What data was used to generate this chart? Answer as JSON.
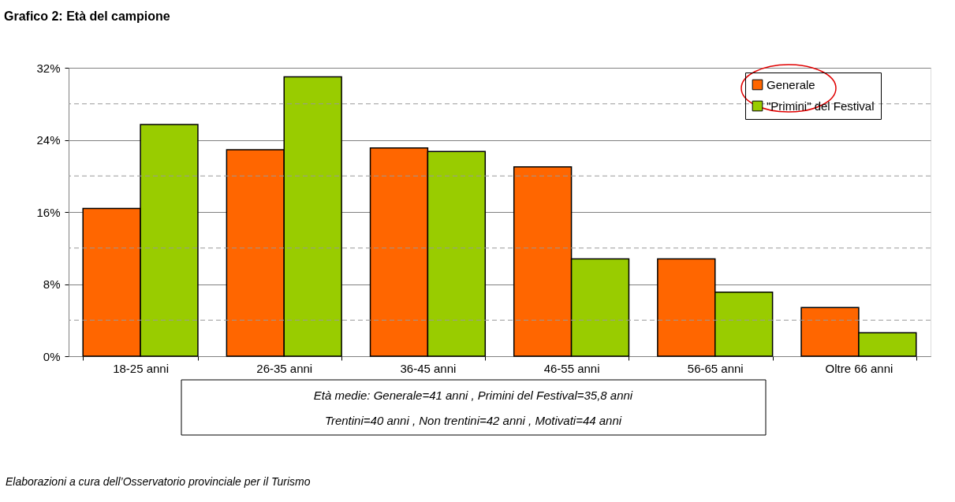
{
  "chart_data": {
    "type": "bar",
    "title": "Grafico 2: Età del campione",
    "categories": [
      "18-25 anni",
      "26-35 anni",
      "36-45 anni",
      "46-55 anni",
      "56-65 anni",
      "Oltre 66 anni"
    ],
    "series": [
      {
        "name": "Generale",
        "color": "#ff6600",
        "values": [
          16.4,
          22.9,
          23.1,
          21.0,
          10.8,
          5.4
        ]
      },
      {
        "name": "\"Primini\" del Festival",
        "color": "#99cc00",
        "values": [
          25.7,
          31.0,
          22.7,
          10.8,
          7.1,
          2.6
        ]
      }
    ],
    "ylim": [
      0,
      32
    ],
    "yticks": [
      {
        "value": 0,
        "label": "0%"
      },
      {
        "value": 8,
        "label": "8%"
      },
      {
        "value": 16,
        "label": "16%"
      },
      {
        "value": 24,
        "label": "24%"
      },
      {
        "value": 32,
        "label": "32%"
      }
    ],
    "grid": "y",
    "ref_lines": [
      {
        "axis": "y",
        "value": 4,
        "line_style": "dashed",
        "color": "#999999"
      },
      {
        "axis": "y",
        "value": 12,
        "line_style": "dashed",
        "color": "#999999"
      },
      {
        "axis": "y",
        "value": 20,
        "line_style": "dashed",
        "color": "#999999"
      },
      {
        "axis": "y",
        "value": 28,
        "line_style": "dashed",
        "color": "#999999"
      }
    ],
    "legend": "top right",
    "annotations": [
      "Età medie:  Generale=41 anni , Primini del Festival=35,8 anni",
      "Trentini=40 anni , Non trentini=42 anni , Motivati=44 anni",
      "Elaborazioni a cura dell’Osservatorio provinciale per il Turismo"
    ]
  }
}
